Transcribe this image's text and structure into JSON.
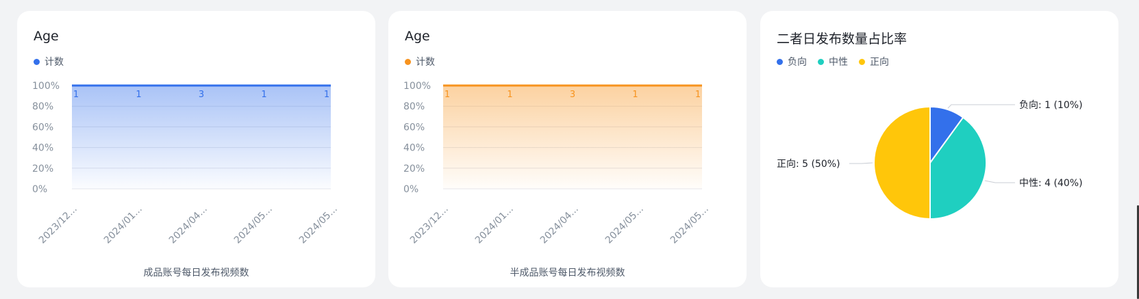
{
  "charts": [
    {
      "title": "Age",
      "legend": "计数",
      "xtitle": "成品账号每日发布视频数"
    },
    {
      "title": "Age",
      "legend": "计数",
      "xtitle": "半成品账号每日发布视频数"
    },
    {
      "title": "二者日发布数量占比率",
      "legend": [
        "负向",
        "中性",
        "正向"
      ]
    }
  ],
  "chart_data": [
    {
      "type": "area",
      "title": "Age",
      "xlabel": "成品账号每日发布视频数",
      "ylabel": "",
      "categories": [
        "2023/12...",
        "2024/01...",
        "2024/04...",
        "2024/05...",
        "2024/05..."
      ],
      "y_ticks": [
        "100%",
        "80%",
        "60%",
        "40%",
        "20%",
        "0%"
      ],
      "ylim": [
        0,
        100
      ],
      "series": [
        {
          "name": "计数",
          "values": [
            100,
            100,
            100,
            100,
            100
          ],
          "labels": [
            "1",
            "1",
            "3",
            "1",
            "1"
          ],
          "color": "#3370eb"
        }
      ],
      "legend_position": "top-left",
      "grid": true
    },
    {
      "type": "area",
      "title": "Age",
      "xlabel": "半成品账号每日发布视频数",
      "ylabel": "",
      "categories": [
        "2023/12...",
        "2024/01...",
        "2024/04...",
        "2024/05...",
        "2024/05..."
      ],
      "y_ticks": [
        "100%",
        "80%",
        "60%",
        "40%",
        "20%",
        "0%"
      ],
      "ylim": [
        0,
        100
      ],
      "series": [
        {
          "name": "计数",
          "values": [
            100,
            100,
            100,
            100,
            100
          ],
          "labels": [
            "1",
            "1",
            "3",
            "1",
            "1"
          ],
          "color": "#f7931e"
        }
      ],
      "legend_position": "top-left",
      "grid": true
    },
    {
      "type": "pie",
      "title": "二者日发布数量占比率",
      "slices": [
        {
          "name": "负向",
          "value": 1,
          "label": "负向: 1 (10%)",
          "color": "#3370eb"
        },
        {
          "name": "中性",
          "value": 4,
          "label": "中性: 4 (40%)",
          "color": "#1fcfc0"
        },
        {
          "name": "正向",
          "value": 5,
          "label": "正向: 5 (50%)",
          "color": "#ffc60a"
        }
      ],
      "legend_position": "top-left"
    }
  ]
}
